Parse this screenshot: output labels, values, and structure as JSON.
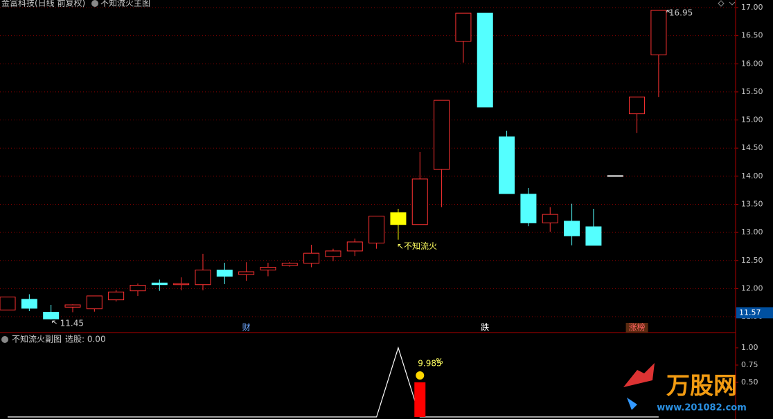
{
  "chart_data": [
    {
      "type": "candlestick",
      "title": "金富科技(日线 前复权)",
      "indicator": "不知流火主图",
      "categories": [
        null,
        null,
        null,
        null,
        null,
        null,
        null,
        null,
        null,
        null,
        null,
        "财",
        null,
        null,
        null,
        null,
        null,
        null,
        null,
        null,
        null,
        null,
        "跌",
        null,
        null,
        null,
        null,
        null,
        null,
        "涨榜",
        null
      ],
      "open": [
        11.62,
        11.81,
        11.58,
        11.67,
        11.64,
        11.8,
        11.96,
        12.1,
        12.07,
        12.07,
        12.33,
        12.25,
        12.33,
        12.41,
        12.45,
        12.57,
        12.67,
        12.81,
        13.14,
        13.14,
        14.12,
        16.4,
        16.9,
        14.7,
        13.68,
        13.17,
        13.2,
        13.1,
        14.01,
        15.11,
        16.16
      ],
      "high": [
        11.85,
        11.9,
        11.71,
        11.72,
        11.87,
        11.98,
        12.09,
        12.16,
        12.2,
        12.62,
        12.46,
        12.47,
        12.46,
        12.47,
        12.78,
        12.71,
        12.89,
        13.29,
        13.42,
        14.43,
        15.35,
        16.9,
        16.9,
        14.81,
        13.79,
        13.45,
        13.51,
        13.42,
        14.01,
        15.41,
        16.95
      ],
      "low": [
        11.62,
        11.6,
        11.45,
        11.58,
        11.59,
        11.77,
        11.87,
        11.96,
        11.97,
        11.97,
        12.08,
        12.14,
        12.22,
        12.39,
        12.38,
        12.49,
        12.58,
        12.71,
        12.87,
        13.14,
        13.45,
        16.02,
        15.23,
        13.69,
        13.11,
        13.01,
        12.77,
        12.77,
        14.01,
        14.77,
        15.41
      ],
      "close": [
        11.85,
        11.65,
        11.46,
        11.71,
        11.87,
        11.94,
        12.06,
        12.07,
        12.09,
        12.33,
        12.22,
        12.3,
        12.38,
        12.45,
        12.63,
        12.67,
        12.83,
        13.29,
        13.35,
        13.95,
        15.35,
        16.9,
        15.23,
        13.69,
        13.17,
        13.32,
        12.94,
        12.77,
        14.01,
        15.41,
        16.95
      ],
      "up_color": "#ff3232",
      "down_color": "#54ffff",
      "flat_color": "#ffffff",
      "signal_color": "#ffff00",
      "ylim": [
        11.23,
        17.135
      ],
      "yticks": [
        {
          "value": 11.5,
          "label": "11.50"
        },
        {
          "value": 12,
          "label": "12.00"
        },
        {
          "value": 12.5,
          "label": "12.50"
        },
        {
          "value": 13,
          "label": "13.00"
        },
        {
          "value": 13.5,
          "label": "13.50"
        },
        {
          "value": 14,
          "label": "14.00"
        },
        {
          "value": 14.5,
          "label": "14.50"
        },
        {
          "value": 15,
          "label": "15.00"
        },
        {
          "value": 15.5,
          "label": "15.50"
        },
        {
          "value": 16,
          "label": "16.00"
        },
        {
          "value": 16.5,
          "label": "16.50"
        },
        {
          "value": 17,
          "label": "17.00"
        }
      ],
      "grid": true,
      "annotation": "↖不知流火",
      "cursor_price": 11.57
    },
    {
      "type": "signal",
      "title": "不知流火副图",
      "readout": "选股: 0.00",
      "series": [
        {
          "color": "#ffffff",
          "values": [
            0,
            0,
            0,
            0,
            0,
            0,
            0,
            0,
            0,
            0,
            0,
            0,
            0,
            0,
            0,
            0,
            0,
            0,
            1,
            0,
            0,
            0,
            0,
            0,
            0,
            0,
            0,
            0,
            0,
            0,
            0
          ]
        },
        {
          "color": "#ff0000",
          "values": [
            null,
            null,
            null,
            null,
            null,
            null,
            null,
            null,
            null,
            null,
            null,
            null,
            null,
            null,
            null,
            null,
            null,
            null,
            null,
            0.5,
            null,
            null,
            null,
            null,
            null,
            null,
            null,
            null,
            null,
            null,
            null
          ]
        }
      ],
      "pct": 9.985,
      "pct_unit": "%",
      "ylim": [
        0,
        1.18
      ],
      "yticks": [
        {
          "value": 0.5,
          "label": "0.50"
        },
        {
          "value": 0.75,
          "label": "0.75"
        },
        {
          "value": 1,
          "label": "1.00"
        }
      ]
    }
  ],
  "logo": {
    "name": "万股网",
    "url": "www.201082.com"
  }
}
